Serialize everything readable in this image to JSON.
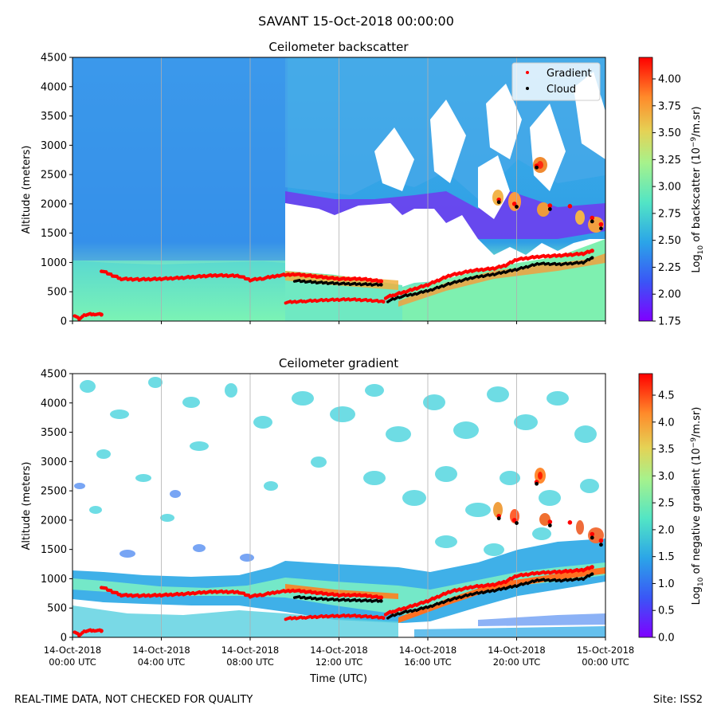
{
  "figure": {
    "suptitle": "SAVANT 15-Oct-2018 00:00:00",
    "footer_left": "REAL-TIME DATA, NOT CHECKED FOR QUALITY",
    "footer_right": "Site: ISS2"
  },
  "x_axis": {
    "label": "Time (UTC)",
    "range_hours": [
      0,
      24
    ],
    "ticks": [
      {
        "hour": 0,
        "line1": "14-Oct-2018",
        "line2": "00:00 UTC"
      },
      {
        "hour": 4,
        "line1": "14-Oct-2018",
        "line2": "04:00 UTC"
      },
      {
        "hour": 8,
        "line1": "14-Oct-2018",
        "line2": "08:00 UTC"
      },
      {
        "hour": 12,
        "line1": "14-Oct-2018",
        "line2": "12:00 UTC"
      },
      {
        "hour": 16,
        "line1": "14-Oct-2018",
        "line2": "16:00 UTC"
      },
      {
        "hour": 20,
        "line1": "14-Oct-2018",
        "line2": "20:00 UTC"
      },
      {
        "hour": 24,
        "line1": "15-Oct-2018",
        "line2": "00:00 UTC"
      }
    ]
  },
  "legend": {
    "gradient": "Gradient",
    "cloud": "Cloud",
    "gradient_color": "#ff0000",
    "cloud_color": "#000000"
  },
  "chart_data": [
    {
      "type": "heatmap",
      "title": "Ceilometer backscatter",
      "ylabel": "Altitude (meters)",
      "ylim": [
        0,
        4500
      ],
      "yticks": [
        0,
        500,
        1000,
        1500,
        2000,
        2500,
        3000,
        3500,
        4000,
        4500
      ],
      "colorbar": {
        "label_prefix": "Log",
        "label_sub": "10",
        "label_mid": " of backscatter (10",
        "label_sup": "−9",
        "label_suffix": "/m.sr)",
        "range": [
          1.75,
          4.2
        ],
        "ticks": [
          "1.75",
          "2.00",
          "2.25",
          "2.50",
          "2.75",
          "3.00",
          "3.25",
          "3.50",
          "3.75",
          "4.00"
        ]
      },
      "show_legend": true
    },
    {
      "type": "heatmap",
      "title": "Ceilometer gradient",
      "ylabel": "Altitude (meters)",
      "ylim": [
        0,
        4500
      ],
      "yticks": [
        0,
        500,
        1000,
        1500,
        2000,
        2500,
        3000,
        3500,
        4000,
        4500
      ],
      "colorbar": {
        "label_prefix": "Log",
        "label_sub": "10",
        "label_mid": " of negative gradient (10",
        "label_sup": "−9",
        "label_suffix": "/m.sr)",
        "range": [
          0,
          4.9
        ],
        "ticks": [
          "0.0",
          "0.5",
          "1.0",
          "1.5",
          "2.0",
          "2.5",
          "3.0",
          "3.5",
          "4.0",
          "4.5"
        ]
      },
      "show_legend": false
    }
  ],
  "series": {
    "gradient_boundary_layer": {
      "name": "Gradient",
      "hours": [
        1.3,
        1.8,
        2.2,
        3,
        4,
        5,
        6,
        6.5,
        7.5,
        8,
        8.6,
        9.3,
        10,
        11,
        12,
        13,
        13.9,
        14.1,
        14.5,
        15,
        15.5,
        16,
        16.5,
        17,
        18,
        19,
        19.5,
        20,
        21,
        22,
        23,
        23.4
      ],
      "altitudes": [
        860,
        780,
        720,
        710,
        720,
        740,
        770,
        780,
        770,
        700,
        730,
        780,
        800,
        760,
        720,
        720,
        680,
        400,
        450,
        500,
        560,
        620,
        700,
        780,
        860,
        900,
        950,
        1050,
        1100,
        1120,
        1150,
        1200
      ]
    },
    "gradient_lower_layer": {
      "name": "Gradient",
      "hours": [
        9.6,
        10.5,
        11.5,
        12.5,
        13.5,
        14.0
      ],
      "altitudes": [
        320,
        340,
        360,
        370,
        350,
        330
      ]
    },
    "gradient_surface": {
      "name": "Gradient",
      "hours": [
        0.1,
        0.3,
        0.6,
        1.0,
        1.3
      ],
      "altitudes": [
        100,
        40,
        110,
        120,
        110
      ]
    },
    "gradient_elevated": {
      "name": "Gradient",
      "hours": [
        19.2,
        19.9,
        20.9,
        21.5,
        22.4,
        23.4,
        23.8
      ],
      "altitudes": [
        2070,
        2000,
        2650,
        1970,
        1960,
        1760,
        1650
      ]
    },
    "cloud_base": {
      "name": "Cloud",
      "hours": [
        10,
        11,
        12,
        13,
        13.9,
        14.2,
        14.8,
        15.5,
        16.2,
        17,
        18,
        19,
        20,
        21,
        22,
        23,
        23.4
      ],
      "altitudes": [
        690,
        660,
        640,
        630,
        620,
        340,
        420,
        470,
        540,
        640,
        740,
        800,
        880,
        980,
        970,
        1000,
        1080
      ]
    },
    "cloud_upper": {
      "name": "Cloud",
      "hours": [
        19.2,
        20.0,
        20.9,
        21.5,
        23.4,
        23.8
      ],
      "altitudes": [
        2030,
        1950,
        2620,
        1910,
        1700,
        1580
      ]
    }
  }
}
